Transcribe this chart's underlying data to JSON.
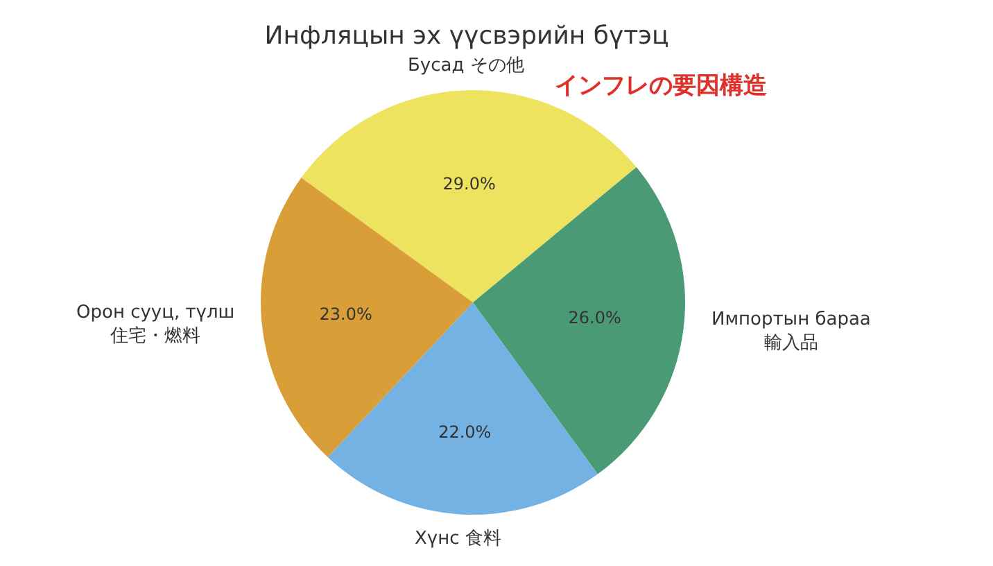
{
  "chart_data": {
    "type": "pie",
    "title": "Инфляцын эх үүсвэрийн бүтэц",
    "annotations": [
      "インフレの要因構造"
    ],
    "categories": [
      "Бусад その他",
      "Импортын бараа\n輸入品",
      "Хүнс 食料",
      "Орон сууц, түлш\n住宅・燃料"
    ],
    "values": [
      29,
      26,
      22,
      23
    ],
    "value_labels": [
      "29.0%",
      "26.0%",
      "22.0%",
      "23.0%"
    ],
    "colors": [
      "#ede35f",
      "#4a9a76",
      "#73b2e2",
      "#d99e37"
    ]
  }
}
